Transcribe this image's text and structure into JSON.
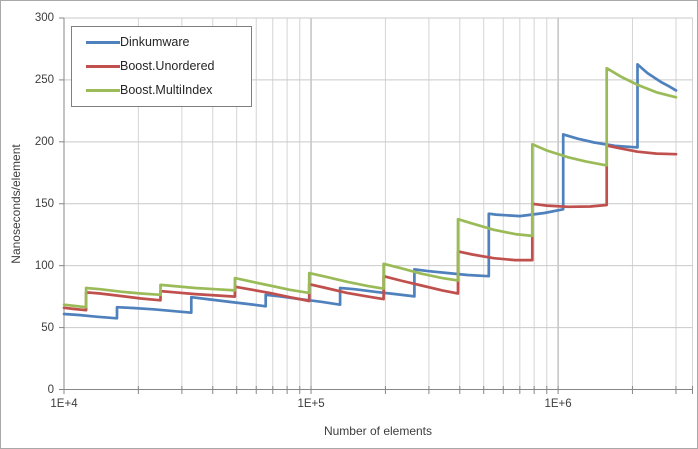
{
  "chart_data": {
    "type": "line",
    "title": "",
    "xlabel": "Number of elements",
    "ylabel": "Nanoseconds/element",
    "x_scale": "log",
    "x_range": [
      10000,
      3500000
    ],
    "y_range": [
      0,
      300
    ],
    "y_ticks": [
      0,
      50,
      100,
      150,
      200,
      250,
      300
    ],
    "x_major_ticks": [
      {
        "value": 10000,
        "label": "1E+4"
      },
      {
        "value": 100000,
        "label": "1E+5"
      },
      {
        "value": 1000000,
        "label": "1E+6"
      }
    ],
    "x_major_gridlines": [
      100000,
      1000000
    ],
    "x_minor_gridlines": [
      20000,
      30000,
      40000,
      50000,
      60000,
      70000,
      80000,
      90000,
      200000,
      300000,
      400000,
      500000,
      600000,
      700000,
      800000,
      900000,
      2000000,
      3000000
    ],
    "grid": true,
    "legend_position": "top-left",
    "series": [
      {
        "name": "Dinkumware",
        "color": "#4F81BD",
        "points": [
          [
            10000,
            61
          ],
          [
            11500,
            60.2
          ],
          [
            13500,
            58.8
          ],
          [
            16384,
            57.5
          ],
          [
            16384,
            66.5
          ],
          [
            19000,
            65.8
          ],
          [
            23000,
            64.8
          ],
          [
            28000,
            63.2
          ],
          [
            32768,
            62
          ],
          [
            32768,
            74.5
          ],
          [
            38000,
            73
          ],
          [
            46000,
            71
          ],
          [
            56000,
            69
          ],
          [
            65536,
            67.2
          ],
          [
            65536,
            76.5
          ],
          [
            75000,
            75.2
          ],
          [
            90000,
            73
          ],
          [
            110000,
            70.8
          ],
          [
            131072,
            68.5
          ],
          [
            131072,
            82
          ],
          [
            150000,
            81
          ],
          [
            180000,
            79
          ],
          [
            220000,
            77
          ],
          [
            262144,
            75.2
          ],
          [
            262144,
            97
          ],
          [
            300000,
            95.5
          ],
          [
            360000,
            94
          ],
          [
            430000,
            92.5
          ],
          [
            524288,
            91.5
          ],
          [
            524288,
            142
          ],
          [
            560000,
            141.2
          ],
          [
            700000,
            140
          ],
          [
            880000,
            142.5
          ],
          [
            1048576,
            145.5
          ],
          [
            1048576,
            206
          ],
          [
            1200000,
            202.5
          ],
          [
            1400000,
            199.5
          ],
          [
            1700000,
            196.8
          ],
          [
            2097152,
            195.5
          ],
          [
            2097152,
            262.5
          ],
          [
            2300000,
            255.5
          ],
          [
            2600000,
            248.5
          ],
          [
            2800000,
            245
          ],
          [
            3000000,
            241.5
          ]
        ]
      },
      {
        "name": "Boost.Unordered",
        "color": "#C0504D",
        "points": [
          [
            10000,
            66
          ],
          [
            11000,
            65
          ],
          [
            12289,
            64
          ],
          [
            12289,
            78.5
          ],
          [
            14000,
            77.5
          ],
          [
            17000,
            75.5
          ],
          [
            20500,
            73.5
          ],
          [
            24593,
            72
          ],
          [
            24593,
            79.5
          ],
          [
            28000,
            78.5
          ],
          [
            34000,
            77
          ],
          [
            41000,
            76
          ],
          [
            49157,
            75
          ],
          [
            49157,
            83
          ],
          [
            56000,
            81
          ],
          [
            68000,
            78
          ],
          [
            82000,
            74.5
          ],
          [
            98317,
            71.5
          ],
          [
            98317,
            85
          ],
          [
            115000,
            82
          ],
          [
            140000,
            78
          ],
          [
            170000,
            75
          ],
          [
            196613,
            73
          ],
          [
            196613,
            91.5
          ],
          [
            230000,
            88
          ],
          [
            280000,
            84
          ],
          [
            340000,
            80
          ],
          [
            393241,
            77.5
          ],
          [
            393241,
            111.5
          ],
          [
            450000,
            109
          ],
          [
            550000,
            106
          ],
          [
            670000,
            104.5
          ],
          [
            786433,
            104.5
          ],
          [
            786433,
            150
          ],
          [
            900000,
            148.5
          ],
          [
            1100000,
            147.5
          ],
          [
            1350000,
            147.8
          ],
          [
            1572869,
            149
          ],
          [
            1572869,
            197
          ],
          [
            1800000,
            194.5
          ],
          [
            2100000,
            192
          ],
          [
            2500000,
            190.5
          ],
          [
            3000000,
            190
          ]
        ]
      },
      {
        "name": "Boost.MultiIndex",
        "color": "#9BBB59",
        "points": [
          [
            10000,
            68.5
          ],
          [
            11000,
            67.5
          ],
          [
            12289,
            66.5
          ],
          [
            12289,
            82
          ],
          [
            14000,
            81
          ],
          [
            17000,
            79
          ],
          [
            20500,
            77.5
          ],
          [
            24593,
            76.5
          ],
          [
            24593,
            84.5
          ],
          [
            28000,
            83.5
          ],
          [
            34000,
            82
          ],
          [
            41000,
            81
          ],
          [
            49157,
            80
          ],
          [
            49157,
            90
          ],
          [
            56000,
            87.5
          ],
          [
            68000,
            84
          ],
          [
            82000,
            80.5
          ],
          [
            98317,
            78
          ],
          [
            98317,
            94
          ],
          [
            115000,
            91
          ],
          [
            140000,
            87
          ],
          [
            170000,
            83.5
          ],
          [
            196613,
            81.5
          ],
          [
            196613,
            101.5
          ],
          [
            230000,
            98
          ],
          [
            280000,
            93.5
          ],
          [
            340000,
            90
          ],
          [
            393241,
            88
          ],
          [
            393241,
            137.5
          ],
          [
            450000,
            134
          ],
          [
            550000,
            129
          ],
          [
            670000,
            125.5
          ],
          [
            786433,
            124
          ],
          [
            786433,
            198
          ],
          [
            900000,
            193
          ],
          [
            1100000,
            187.5
          ],
          [
            1300000,
            184
          ],
          [
            1572869,
            181
          ],
          [
            1572869,
            259.5
          ],
          [
            1800000,
            252.5
          ],
          [
            2100000,
            246
          ],
          [
            2500000,
            240
          ],
          [
            3000000,
            236
          ]
        ]
      }
    ]
  },
  "colors": {
    "grid_horizontal": "#C9C9C9",
    "grid_minor": "#D4D4D4",
    "grid_major": "#A6A6A6",
    "axis": "#878787",
    "text": "#3D3D3D",
    "legend_border": "#7F7F7F",
    "frame_border": "#A8A8A8",
    "background": "#FFFFFF"
  }
}
